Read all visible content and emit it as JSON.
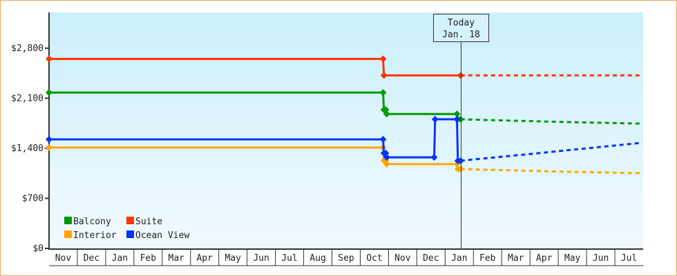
{
  "chart_data": {
    "type": "line",
    "title": "",
    "xlabel": "",
    "ylabel": "",
    "ylim": [
      0,
      3300
    ],
    "yticks": [
      {
        "value": 0,
        "label": "$0"
      },
      {
        "value": 700,
        "label": "$700"
      },
      {
        "value": 1400,
        "label": "$1,400"
      },
      {
        "value": 2100,
        "label": "$2,100"
      },
      {
        "value": 2800,
        "label": "$2,800"
      }
    ],
    "months": [
      "Nov",
      "Dec",
      "Jan",
      "Feb",
      "Mar",
      "Apr",
      "May",
      "Jun",
      "Jul",
      "Aug",
      "Sep",
      "Oct",
      "Nov",
      "Dec",
      "Jan",
      "Feb",
      "Mar",
      "Apr",
      "May",
      "Jun",
      "Jul"
    ],
    "month_keys": [
      "2017-11",
      "2017-12",
      "2018-01",
      "2018-02",
      "2018-03",
      "2018-04",
      "2018-05",
      "2018-06",
      "2018-07",
      "2018-08",
      "2018-09",
      "2018-10",
      "2018-11",
      "2018-12",
      "2019-01",
      "2019-02",
      "2019-03",
      "2019-04",
      "2019-05",
      "2019-06",
      "2019-07"
    ],
    "today": {
      "date": "2019-01-18",
      "label_line1": "Today",
      "label_line2": "Jan. 18"
    },
    "grid": false,
    "legend_position": "bottom-left",
    "series": [
      {
        "name": "Balcony",
        "color": "#009900",
        "history": [
          [
            "2017-11-01",
            2180
          ],
          [
            "2018-10-26",
            2180
          ],
          [
            "2018-10-27",
            1940
          ],
          [
            "2018-10-29",
            1940
          ],
          [
            "2018-10-30",
            1880
          ],
          [
            "2019-01-14",
            1880
          ],
          [
            "2019-01-15",
            1805
          ],
          [
            "2019-01-18",
            1805
          ]
        ],
        "forecast": [
          [
            "2019-01-18",
            1805
          ],
          [
            "2019-03-01",
            1790
          ],
          [
            "2019-05-01",
            1770
          ],
          [
            "2019-07-31",
            1745
          ]
        ]
      },
      {
        "name": "Suite",
        "color": "#ff3300",
        "history": [
          [
            "2017-11-01",
            2650
          ],
          [
            "2018-10-26",
            2650
          ],
          [
            "2018-10-27",
            2420
          ],
          [
            "2019-01-18",
            2420
          ]
        ],
        "forecast": [
          [
            "2019-01-18",
            2420
          ],
          [
            "2019-07-31",
            2420
          ]
        ]
      },
      {
        "name": "Interior",
        "color": "#ffa500",
        "history": [
          [
            "2017-11-01",
            1410
          ],
          [
            "2018-10-26",
            1410
          ],
          [
            "2018-10-27",
            1230
          ],
          [
            "2018-10-29",
            1230
          ],
          [
            "2018-10-30",
            1178
          ],
          [
            "2019-01-14",
            1178
          ],
          [
            "2019-01-15",
            1110
          ],
          [
            "2019-01-18",
            1110
          ]
        ],
        "forecast": [
          [
            "2019-01-18",
            1110
          ],
          [
            "2019-03-01",
            1095
          ],
          [
            "2019-05-01",
            1075
          ],
          [
            "2019-07-31",
            1052
          ]
        ]
      },
      {
        "name": "Ocean View",
        "color": "#0033ff",
        "history": [
          [
            "2017-11-01",
            1525
          ],
          [
            "2018-10-26",
            1525
          ],
          [
            "2018-10-27",
            1332
          ],
          [
            "2018-10-29",
            1332
          ],
          [
            "2018-10-30",
            1274
          ],
          [
            "2018-12-20",
            1274
          ],
          [
            "2018-12-21",
            1805
          ],
          [
            "2019-01-14",
            1805
          ],
          [
            "2019-01-15",
            1226
          ],
          [
            "2019-01-18",
            1226
          ]
        ],
        "forecast": [
          [
            "2019-01-18",
            1226
          ],
          [
            "2019-04-01",
            1320
          ],
          [
            "2019-07-31",
            1477
          ]
        ]
      }
    ]
  }
}
